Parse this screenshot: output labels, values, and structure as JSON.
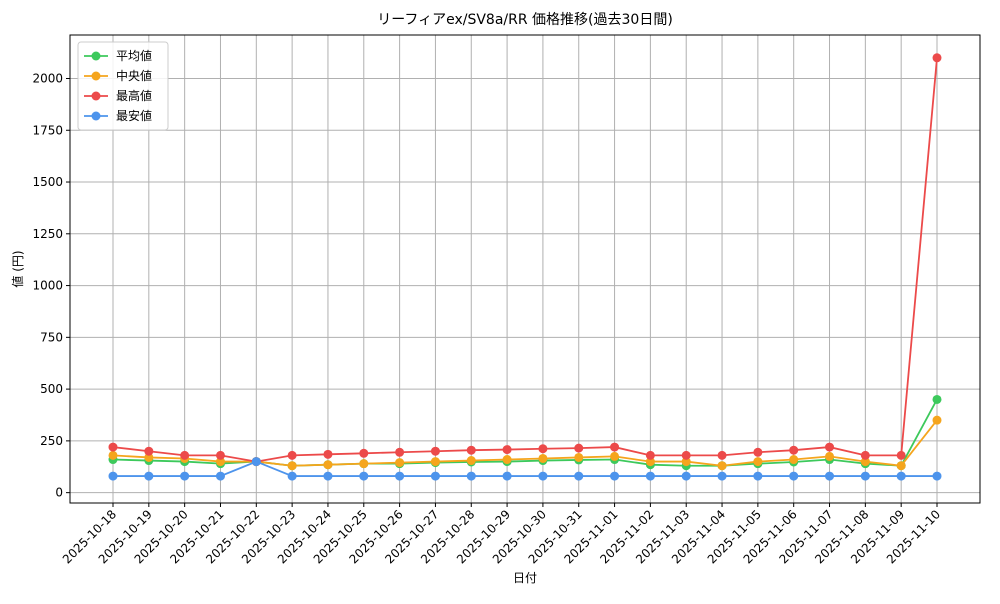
{
  "chart_data": {
    "type": "line",
    "title": "リーフィアex/SV8a/RR 価格推移(過去30日間)",
    "x_label": "日付",
    "y_label": "値 (円)",
    "categories": [
      "2025-10-18",
      "2025-10-19",
      "2025-10-20",
      "2025-10-21",
      "2025-10-22",
      "2025-10-23",
      "2025-10-24",
      "2025-10-25",
      "2025-10-26",
      "2025-10-27",
      "2025-10-28",
      "2025-10-29",
      "2025-10-30",
      "2025-10-31",
      "2025-11-01",
      "2025-11-02",
      "2025-11-03",
      "2025-11-04",
      "2025-11-05",
      "2025-11-06",
      "2025-11-07",
      "2025-11-08",
      "2025-11-09",
      "2025-11-10"
    ],
    "series": [
      {
        "name": "平均値",
        "color": "#3dc95c",
        "values": [
          160,
          155,
          150,
          140,
          150,
          130,
          135,
          140,
          140,
          145,
          148,
          150,
          155,
          158,
          160,
          135,
          130,
          130,
          140,
          148,
          160,
          140,
          130,
          450
        ]
      },
      {
        "name": "中央値",
        "color": "#f5a51d",
        "values": [
          180,
          170,
          165,
          150,
          150,
          130,
          135,
          140,
          145,
          150,
          155,
          160,
          165,
          170,
          175,
          150,
          150,
          130,
          150,
          160,
          175,
          150,
          130,
          350
        ]
      },
      {
        "name": "最高値",
        "color": "#ec4a4a",
        "values": [
          220,
          200,
          180,
          180,
          150,
          180,
          185,
          190,
          195,
          200,
          205,
          208,
          212,
          215,
          220,
          180,
          180,
          180,
          195,
          205,
          220,
          180,
          180,
          2100
        ]
      },
      {
        "name": "最安値",
        "color": "#4d94ec",
        "values": [
          80,
          80,
          80,
          80,
          150,
          80,
          80,
          80,
          80,
          80,
          80,
          80,
          80,
          80,
          80,
          80,
          80,
          80,
          80,
          80,
          80,
          80,
          80,
          80
        ]
      }
    ],
    "ylim": [
      -50,
      2210
    ],
    "yticks": [
      0,
      250,
      500,
      750,
      1000,
      1250,
      1500,
      1750,
      2000
    ],
    "grid": true,
    "legend": "upper-left"
  }
}
